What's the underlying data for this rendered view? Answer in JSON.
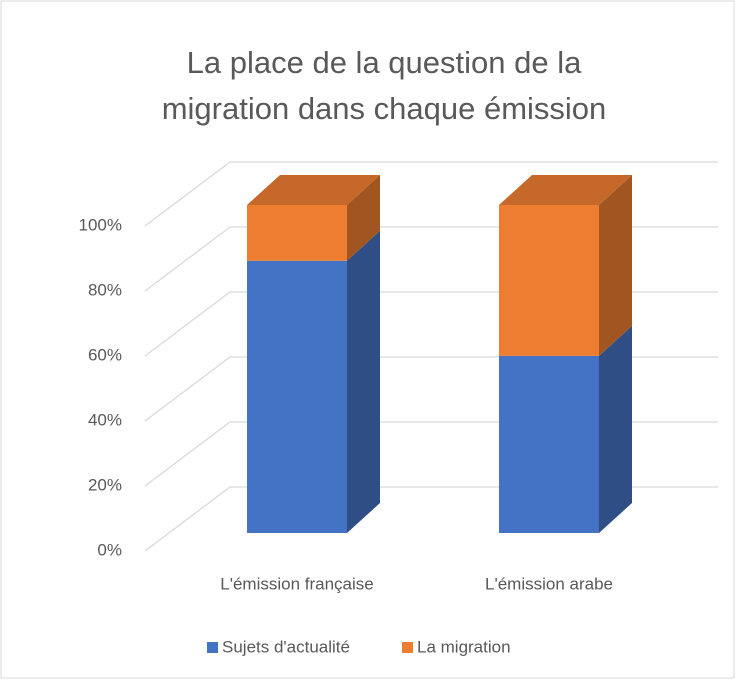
{
  "chart_data": {
    "type": "bar3d_stacked",
    "title": "La place de la question de la migration dans chaque émission",
    "categories": [
      "L'émission française",
      "L'émission arabe"
    ],
    "series": [
      {
        "name": "Sujets d'actualité",
        "color": "#4472c4",
        "values": [
          83,
          54
        ]
      },
      {
        "name": "La migration",
        "color": "#ed7d31",
        "values": [
          17,
          46
        ]
      }
    ],
    "ylim": [
      0,
      100
    ],
    "yticks": [
      {
        "value": 0,
        "label": "0%"
      },
      {
        "value": 20,
        "label": "20%"
      },
      {
        "value": 40,
        "label": "40%"
      },
      {
        "value": 60,
        "label": "60%"
      },
      {
        "value": 80,
        "label": "80%"
      },
      {
        "value": 100,
        "label": "100%"
      }
    ],
    "grid": true,
    "legend": "bottom"
  }
}
